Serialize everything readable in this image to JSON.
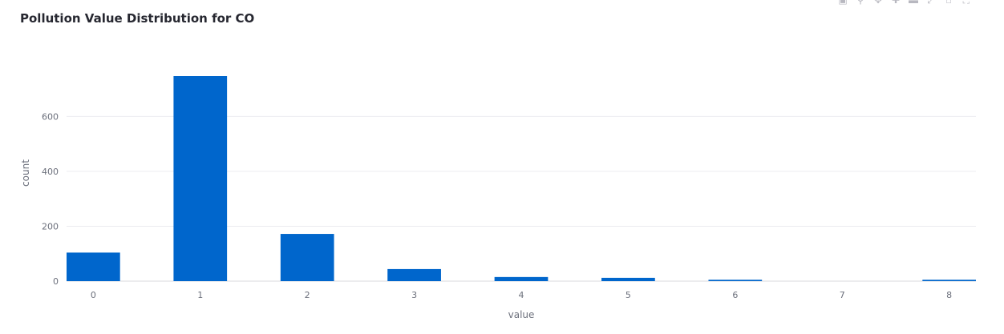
{
  "chart_data": {
    "type": "bar",
    "title": "Pollution Value Distribution for CO",
    "xlabel": "value",
    "ylabel": "count",
    "categories": [
      "0",
      "1",
      "2",
      "3",
      "4",
      "5",
      "6",
      "7",
      "8"
    ],
    "values": [
      104,
      747,
      172,
      44,
      15,
      12,
      5,
      0,
      5
    ],
    "ylim": [
      0,
      747
    ],
    "yticks": [
      0,
      200,
      400,
      600
    ],
    "grid": true,
    "bar_color": "#0066cc"
  },
  "toolbar": {
    "icons": [
      "camera-icon",
      "zoom-icon",
      "pan-icon",
      "zoom-in-icon",
      "zoom-out-icon",
      "autoscale-icon",
      "home-icon",
      "fullscreen-icon"
    ]
  }
}
